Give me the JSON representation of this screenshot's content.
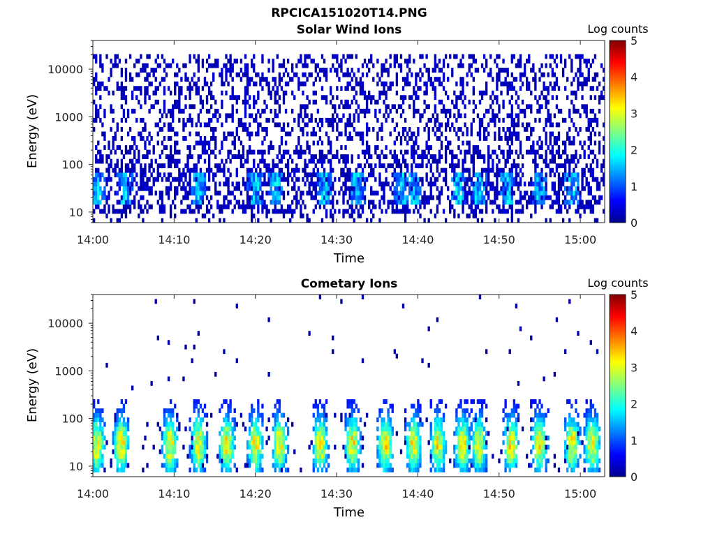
{
  "figure": {
    "title": "RPCICA151020T14.PNG"
  },
  "chart_data": [
    {
      "type": "heatmap",
      "title": "Solar Wind Ions",
      "xlabel": "Time",
      "ylabel": "Energy (eV)",
      "y_scale": "log",
      "ylim": [
        6,
        40000
      ],
      "x_ticks": [
        "14:00",
        "14:10",
        "14:20",
        "14:30",
        "14:40",
        "14:50",
        "15:00"
      ],
      "y_ticks": [
        "10",
        "100",
        "1000",
        "10000"
      ],
      "xlim": [
        "14:00",
        "15:03"
      ],
      "colorbar": {
        "label": "Log counts",
        "range": [
          0,
          5
        ],
        "ticks": [
          "0",
          "1",
          "2",
          "3",
          "4",
          "5"
        ],
        "colormap": "jet"
      },
      "grid": false,
      "bursts_minutes": [
        0.5,
        4,
        13,
        20,
        22.5,
        28.5,
        32.5,
        38,
        39.5,
        45,
        47.5,
        51,
        55,
        59
      ]
    },
    {
      "type": "heatmap",
      "title": "Cometary Ions",
      "xlabel": "Time",
      "ylabel": "Energy (eV)",
      "y_scale": "log",
      "ylim": [
        6,
        40000
      ],
      "x_ticks": [
        "14:00",
        "14:10",
        "14:20",
        "14:30",
        "14:40",
        "14:50",
        "15:00"
      ],
      "y_ticks": [
        "10",
        "100",
        "1000",
        "10000"
      ],
      "xlim": [
        "14:00",
        "15:03"
      ],
      "colorbar": {
        "label": "Log counts",
        "range": [
          0,
          5
        ],
        "ticks": [
          "0",
          "1",
          "2",
          "3",
          "4",
          "5"
        ],
        "colormap": "jet"
      },
      "grid": false,
      "bursts_minutes": [
        0.5,
        3.5,
        9.5,
        13,
        16.5,
        20,
        23,
        28,
        32,
        36,
        39.5,
        42.5,
        45.5,
        47.5,
        51.5,
        55,
        59,
        61.5
      ]
    }
  ]
}
